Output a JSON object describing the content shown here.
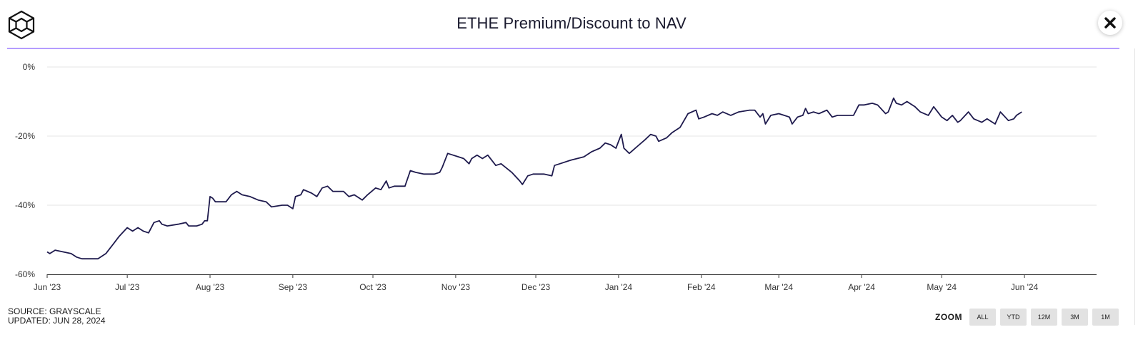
{
  "header": {
    "logo_icon": "cube-logo-icon",
    "title": "ETHE Premium/Discount to NAV",
    "close_icon": "close-icon"
  },
  "footer": {
    "source": "SOURCE: GRAYSCALE",
    "updated": "UPDATED: JUN 28, 2024"
  },
  "zoom": {
    "label": "ZOOM",
    "options": [
      "ALL",
      "YTD",
      "12M",
      "3M",
      "1M"
    ]
  },
  "colors": {
    "line": "#1e1a4d",
    "accent": "#b49cff",
    "grid": "#e6e6e6"
  },
  "chart_data": {
    "type": "line",
    "title": "ETHE Premium/Discount to NAV",
    "xlabel": "",
    "ylabel": "",
    "ylim": [
      -60,
      0
    ],
    "yticks": [
      0,
      -20,
      -40,
      -60
    ],
    "ytick_labels": [
      "0%",
      "-20%",
      "-40%",
      "-60%"
    ],
    "xticks": [
      "2023-06-01",
      "2023-07-01",
      "2023-08-01",
      "2023-09-01",
      "2023-10-01",
      "2023-11-01",
      "2023-12-01",
      "2024-01-01",
      "2024-02-01",
      "2024-03-01",
      "2024-04-01",
      "2024-05-01",
      "2024-06-01"
    ],
    "xtick_labels": [
      "Jun '23",
      "Jul '23",
      "Aug '23",
      "Sep '23",
      "Oct '23",
      "Nov '23",
      "Dec '23",
      "Jan '24",
      "Feb '24",
      "Mar '24",
      "Apr '24",
      "May '24",
      "Jun '24"
    ],
    "xlim": [
      "2023-06-01",
      "2024-06-28"
    ],
    "grid": true,
    "legend": "none",
    "series": [
      {
        "points": [
          [
            "2023-06-01",
            -53.5
          ],
          [
            "2023-06-02",
            -54.0
          ],
          [
            "2023-06-04",
            -53.0
          ],
          [
            "2023-06-07",
            -53.5
          ],
          [
            "2023-06-10",
            -54.0
          ],
          [
            "2023-06-12",
            -55.0
          ],
          [
            "2023-06-14",
            -55.5
          ],
          [
            "2023-06-18",
            -55.5
          ],
          [
            "2023-06-20",
            -55.5
          ],
          [
            "2023-06-23",
            -54.0
          ],
          [
            "2023-06-26",
            -51.0
          ],
          [
            "2023-06-28",
            -49.0
          ],
          [
            "2023-07-01",
            -46.5
          ],
          [
            "2023-07-03",
            -47.5
          ],
          [
            "2023-07-05",
            -46.5
          ],
          [
            "2023-07-07",
            -47.5
          ],
          [
            "2023-07-09",
            -48.0
          ],
          [
            "2023-07-11",
            -45.0
          ],
          [
            "2023-07-13",
            -44.5
          ],
          [
            "2023-07-14",
            -45.5
          ],
          [
            "2023-07-16",
            -46.0
          ],
          [
            "2023-07-20",
            -45.5
          ],
          [
            "2023-07-23",
            -45.0
          ],
          [
            "2023-07-24",
            -46.0
          ],
          [
            "2023-07-27",
            -46.0
          ],
          [
            "2023-07-29",
            -45.5
          ],
          [
            "2023-07-30",
            -44.5
          ],
          [
            "2023-07-31",
            -44.5
          ],
          [
            "2023-08-01",
            -37.5
          ],
          [
            "2023-08-02",
            -38.0
          ],
          [
            "2023-08-03",
            -39.0
          ],
          [
            "2023-08-07",
            -39.0
          ],
          [
            "2023-08-09",
            -37.0
          ],
          [
            "2023-08-11",
            -36.0
          ],
          [
            "2023-08-13",
            -37.0
          ],
          [
            "2023-08-16",
            -37.5
          ],
          [
            "2023-08-19",
            -38.5
          ],
          [
            "2023-08-22",
            -39.0
          ],
          [
            "2023-08-24",
            -40.5
          ],
          [
            "2023-08-28",
            -40.0
          ],
          [
            "2023-08-30",
            -40.0
          ],
          [
            "2023-09-01",
            -41.0
          ],
          [
            "2023-09-02",
            -37.5
          ],
          [
            "2023-09-04",
            -37.0
          ],
          [
            "2023-09-05",
            -35.5
          ],
          [
            "2023-09-08",
            -36.5
          ],
          [
            "2023-09-10",
            -37.5
          ],
          [
            "2023-09-12",
            -35.0
          ],
          [
            "2023-09-14",
            -34.5
          ],
          [
            "2023-09-16",
            -36.0
          ],
          [
            "2023-09-20",
            -36.0
          ],
          [
            "2023-09-22",
            -37.5
          ],
          [
            "2023-09-24",
            -37.0
          ],
          [
            "2023-09-27",
            -38.5
          ],
          [
            "2023-09-29",
            -37.0
          ],
          [
            "2023-10-02",
            -35.0
          ],
          [
            "2023-10-04",
            -35.5
          ],
          [
            "2023-10-06",
            -33.0
          ],
          [
            "2023-10-07",
            -35.0
          ],
          [
            "2023-10-09",
            -34.5
          ],
          [
            "2023-10-13",
            -34.5
          ],
          [
            "2023-10-15",
            -30.0
          ],
          [
            "2023-10-17",
            -30.5
          ],
          [
            "2023-10-20",
            -31.0
          ],
          [
            "2023-10-24",
            -31.0
          ],
          [
            "2023-10-26",
            -30.5
          ],
          [
            "2023-10-27",
            -29.0
          ],
          [
            "2023-10-29",
            -25.0
          ],
          [
            "2023-10-31",
            -25.5
          ],
          [
            "2023-11-04",
            -26.5
          ],
          [
            "2023-11-06",
            -28.0
          ],
          [
            "2023-11-07",
            -26.5
          ],
          [
            "2023-11-09",
            -25.5
          ],
          [
            "2023-11-11",
            -26.5
          ],
          [
            "2023-11-13",
            -25.5
          ],
          [
            "2023-11-16",
            -28.5
          ],
          [
            "2023-11-18",
            -28.0
          ],
          [
            "2023-11-22",
            -30.5
          ],
          [
            "2023-11-25",
            -33.0
          ],
          [
            "2023-11-26",
            -34.0
          ],
          [
            "2023-11-28",
            -31.5
          ],
          [
            "2023-11-30",
            -31.0
          ],
          [
            "2023-12-04",
            -31.0
          ],
          [
            "2023-12-07",
            -31.5
          ],
          [
            "2023-12-08",
            -28.5
          ],
          [
            "2023-12-10",
            -28.0
          ],
          [
            "2023-12-14",
            -27.0
          ],
          [
            "2023-12-19",
            -26.0
          ],
          [
            "2023-12-22",
            -24.5
          ],
          [
            "2023-12-25",
            -23.5
          ],
          [
            "2023-12-27",
            -22.0
          ],
          [
            "2023-12-29",
            -22.5
          ],
          [
            "2023-12-31",
            -23.5
          ],
          [
            "2024-01-02",
            -19.5
          ],
          [
            "2024-01-03",
            -23.5
          ],
          [
            "2024-01-05",
            -25.0
          ],
          [
            "2024-01-08",
            -23.0
          ],
          [
            "2024-01-11",
            -21.0
          ],
          [
            "2024-01-13",
            -19.5
          ],
          [
            "2024-01-15",
            -20.0
          ],
          [
            "2024-01-16",
            -21.5
          ],
          [
            "2024-01-19",
            -20.5
          ],
          [
            "2024-01-21",
            -19.0
          ],
          [
            "2024-01-22",
            -18.5
          ],
          [
            "2024-01-24",
            -17.5
          ],
          [
            "2024-01-27",
            -13.5
          ],
          [
            "2024-01-30",
            -12.5
          ],
          [
            "2024-01-31",
            -15.0
          ],
          [
            "2024-02-02",
            -14.5
          ],
          [
            "2024-02-05",
            -13.5
          ],
          [
            "2024-02-07",
            -14.0
          ],
          [
            "2024-02-09",
            -13.0
          ],
          [
            "2024-02-12",
            -14.0
          ],
          [
            "2024-02-15",
            -13.0
          ],
          [
            "2024-02-19",
            -12.5
          ],
          [
            "2024-02-21",
            -12.5
          ],
          [
            "2024-02-23",
            -14.5
          ],
          [
            "2024-02-24",
            -13.5
          ],
          [
            "2024-02-25",
            -16.5
          ],
          [
            "2024-02-27",
            -14.0
          ],
          [
            "2024-03-01",
            -13.5
          ],
          [
            "2024-03-03",
            -14.0
          ],
          [
            "2024-03-05",
            -14.5
          ],
          [
            "2024-03-06",
            -16.5
          ],
          [
            "2024-03-08",
            -14.5
          ],
          [
            "2024-03-10",
            -14.0
          ],
          [
            "2024-03-11",
            -12.0
          ],
          [
            "2024-03-12",
            -13.5
          ],
          [
            "2024-03-14",
            -13.0
          ],
          [
            "2024-03-16",
            -13.5
          ],
          [
            "2024-03-19",
            -12.5
          ],
          [
            "2024-03-21",
            -14.5
          ],
          [
            "2024-03-23",
            -14.0
          ],
          [
            "2024-03-26",
            -14.0
          ],
          [
            "2024-03-29",
            -14.0
          ],
          [
            "2024-03-31",
            -11.0
          ],
          [
            "2024-04-02",
            -11.0
          ],
          [
            "2024-04-05",
            -10.5
          ],
          [
            "2024-04-07",
            -11.0
          ],
          [
            "2024-04-10",
            -13.5
          ],
          [
            "2024-04-11",
            -13.0
          ],
          [
            "2024-04-13",
            -9.0
          ],
          [
            "2024-04-14",
            -10.5
          ],
          [
            "2024-04-16",
            -11.0
          ],
          [
            "2024-04-18",
            -10.0
          ],
          [
            "2024-04-21",
            -11.5
          ],
          [
            "2024-04-23",
            -13.0
          ],
          [
            "2024-04-26",
            -14.0
          ],
          [
            "2024-04-28",
            -11.5
          ],
          [
            "2024-04-29",
            -12.5
          ],
          [
            "2024-05-01",
            -14.5
          ],
          [
            "2024-05-03",
            -15.5
          ],
          [
            "2024-05-05",
            -14.0
          ],
          [
            "2024-05-07",
            -16.0
          ],
          [
            "2024-05-08",
            -15.5
          ],
          [
            "2024-05-11",
            -13.0
          ],
          [
            "2024-05-13",
            -15.0
          ],
          [
            "2024-05-16",
            -16.0
          ],
          [
            "2024-05-18",
            -15.0
          ],
          [
            "2024-05-21",
            -16.5
          ],
          [
            "2024-05-23",
            -13.0
          ],
          [
            "2024-05-26",
            -15.5
          ],
          [
            "2024-05-28",
            -15.0
          ],
          [
            "2024-05-29",
            -14.0
          ],
          [
            "2024-05-31",
            -13.0
          ]
        ]
      }
    ]
  }
}
